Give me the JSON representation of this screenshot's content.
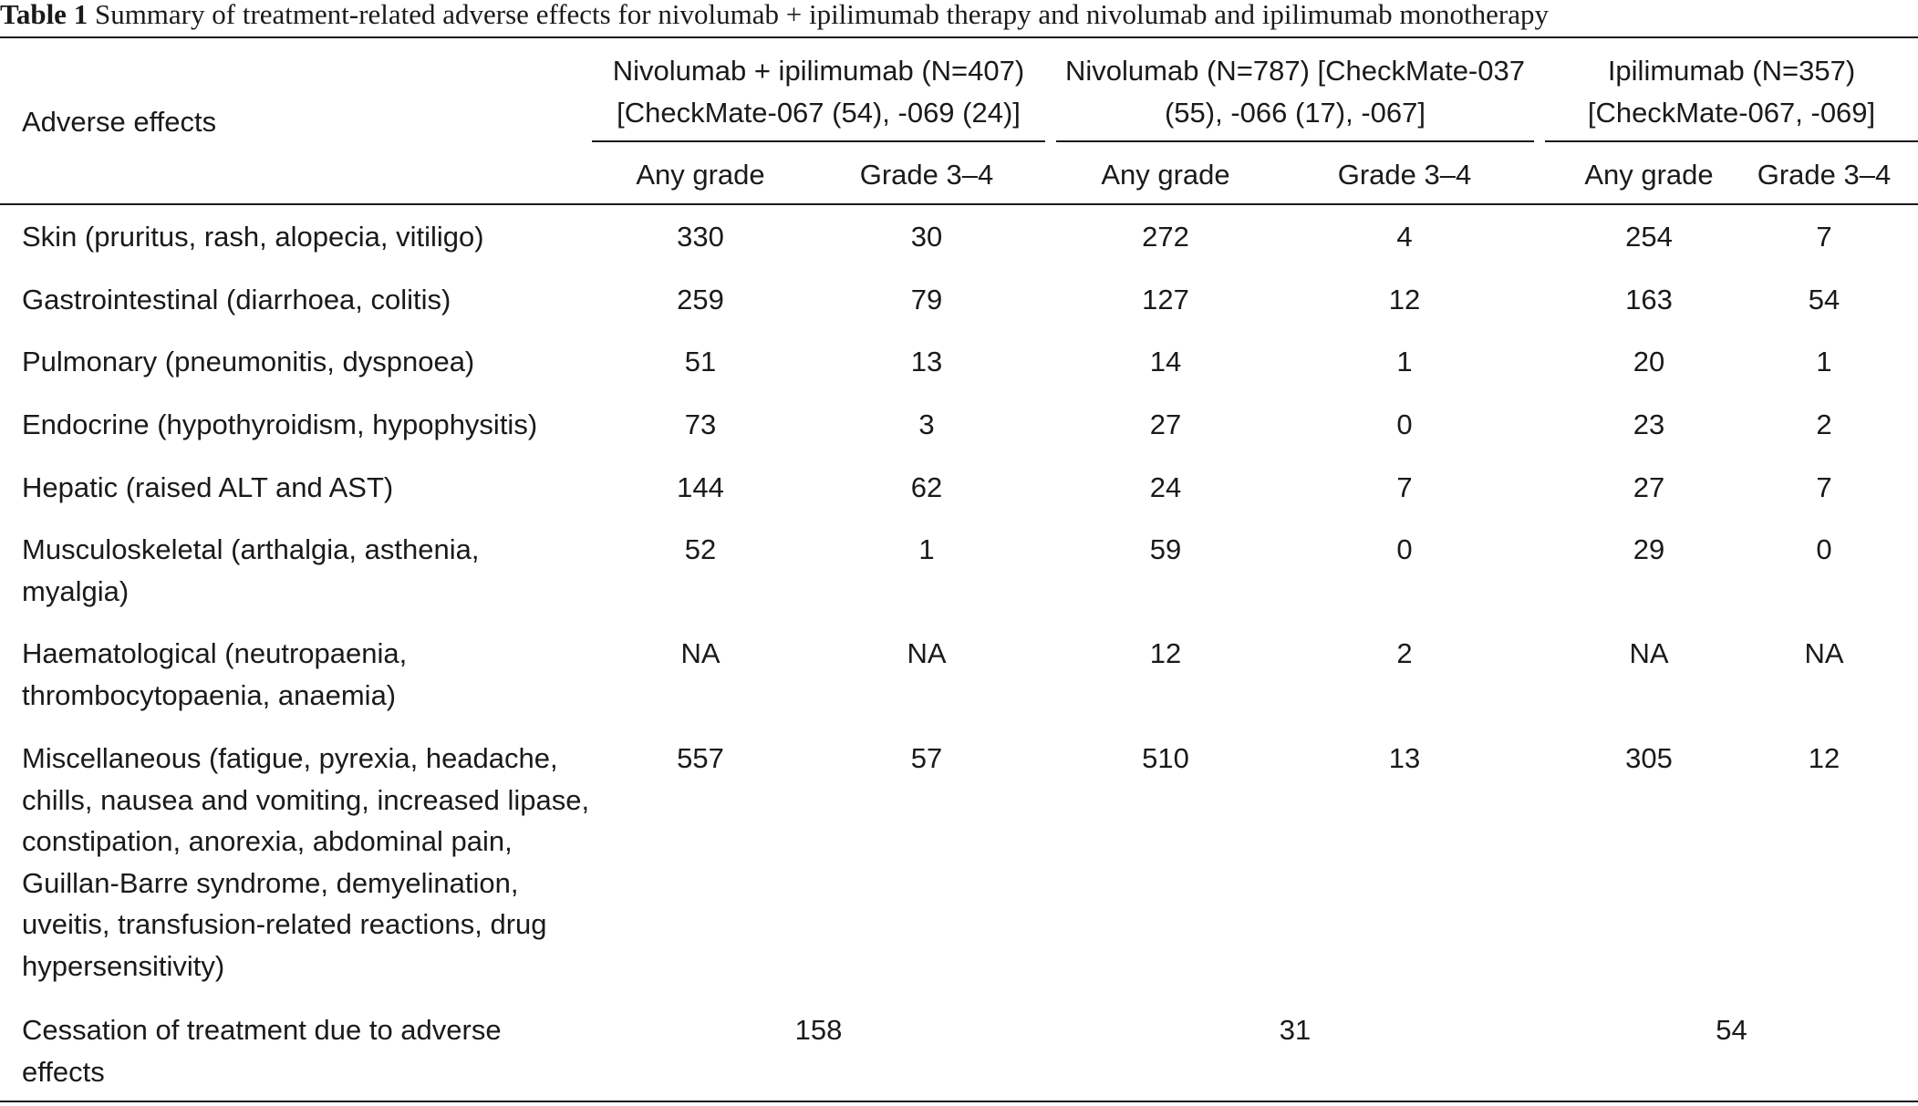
{
  "caption": {
    "label": "Table 1",
    "text": "Summary of treatment-related adverse effects for nivolumab + ipilimumab therapy and nivolumab and ipilimumab monotherapy"
  },
  "header": {
    "row_label": "Adverse effects",
    "groups": [
      {
        "line1": "Nivolumab + ipilimumab (N=407)",
        "line2": "[CheckMate-067 (54), -069 (24)]"
      },
      {
        "line1": "Nivolumab (N=787) [CheckMate-037",
        "line2": "(55), -066 (17), -067]"
      },
      {
        "line1": "Ipilimumab (N=357)",
        "line2": "[CheckMate-067, -069]"
      }
    ],
    "subheaders": [
      "Any grade",
      "Grade 3–4",
      "Any grade",
      "Grade 3–4",
      "Any grade",
      "Grade 3–4"
    ]
  },
  "rows": [
    {
      "label": "Skin (pruritus, rash, alopecia, vitiligo)",
      "values": [
        "330",
        "30",
        "272",
        "4",
        "254",
        "7"
      ]
    },
    {
      "label": "Gastrointestinal (diarrhoea, colitis)",
      "values": [
        "259",
        "79",
        "127",
        "12",
        "163",
        "54"
      ]
    },
    {
      "label": "Pulmonary (pneumonitis, dyspnoea)",
      "values": [
        "51",
        "13",
        "14",
        "1",
        "20",
        "1"
      ]
    },
    {
      "label": "Endocrine (hypothyroidism, hypophysitis)",
      "values": [
        "73",
        "3",
        "27",
        "0",
        "23",
        "2"
      ]
    },
    {
      "label": "Hepatic (raised ALT and AST)",
      "values": [
        "144",
        "62",
        "24",
        "7",
        "27",
        "7"
      ]
    },
    {
      "label": "Musculoskeletal (arthalgia, asthenia, myalgia)",
      "values": [
        "52",
        "1",
        "59",
        "0",
        "29",
        "0"
      ]
    },
    {
      "label": "Haematological (neutropaenia, thrombocytopaenia, anaemia)",
      "values": [
        "NA",
        "NA",
        "12",
        "2",
        "NA",
        "NA"
      ]
    },
    {
      "label": "Miscellaneous (fatigue, pyrexia, headache, chills, nausea and vomiting, increased lipase, constipation, anorexia, abdominal pain, Guillan-Barre syndrome, demyelination, uveitis, transfusion-related reactions, drug hypersensitivity)",
      "values": [
        "557",
        "57",
        "510",
        "13",
        "305",
        "12"
      ]
    }
  ],
  "cessation": {
    "label": "Cessation of treatment due to adverse effects",
    "values": [
      "158",
      "31",
      "54"
    ]
  }
}
